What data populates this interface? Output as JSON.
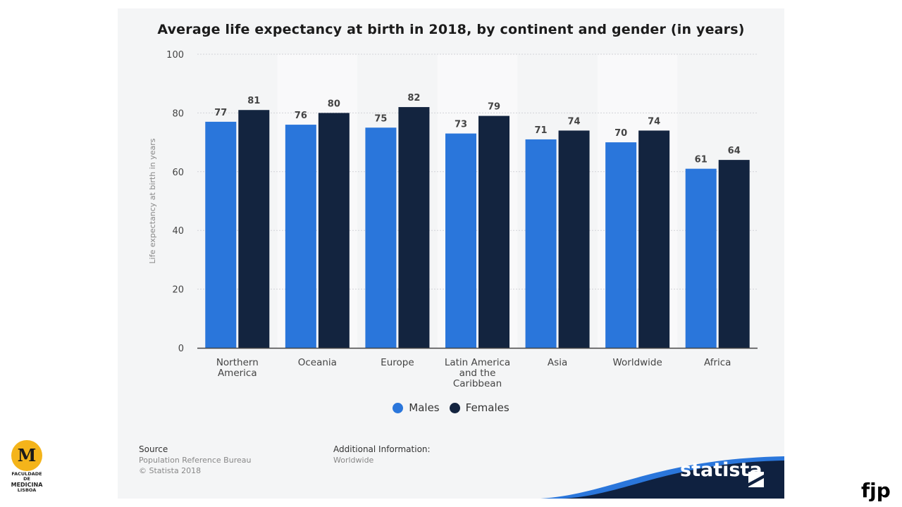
{
  "chart_data": {
    "type": "bar",
    "title": "Average life expectancy at birth in 2018, by continent and gender (in years)",
    "ylabel": "Life expectancy at birth in years",
    "xlabel": "",
    "ylim": [
      0,
      100
    ],
    "yticks": [
      0,
      20,
      40,
      60,
      80,
      100
    ],
    "grid": true,
    "legend_position": "bottom",
    "categories": [
      [
        "Northern",
        "America"
      ],
      [
        "Oceania"
      ],
      [
        "Europe"
      ],
      [
        "Latin America",
        "and the",
        "Caribbean"
      ],
      [
        "Asia"
      ],
      [
        "Worldwide"
      ],
      [
        "Africa"
      ]
    ],
    "series": [
      {
        "name": "Males",
        "color": "#2a76db",
        "values": [
          77,
          76,
          75,
          73,
          71,
          70,
          61
        ]
      },
      {
        "name": "Females",
        "color": "#13243f",
        "values": [
          81,
          80,
          82,
          79,
          74,
          74,
          64
        ]
      }
    ]
  },
  "legend": {
    "males": "Males",
    "females": "Females"
  },
  "footer": {
    "source_heading": "Source",
    "source_line1": "Population Reference Bureau",
    "source_line2": "© Statista 2018",
    "info_heading": "Additional Information:",
    "info_line1": "Worldwide"
  },
  "branding": {
    "statista": "statista",
    "band_color": "#0f2140",
    "accent_color": "#2a76db"
  },
  "logo": {
    "letter": "M",
    "line1": "FACULDADE DE",
    "line2": "MEDICINA",
    "line3": "LISBOA",
    "color": "#f4b41a"
  },
  "signature": "fjp"
}
